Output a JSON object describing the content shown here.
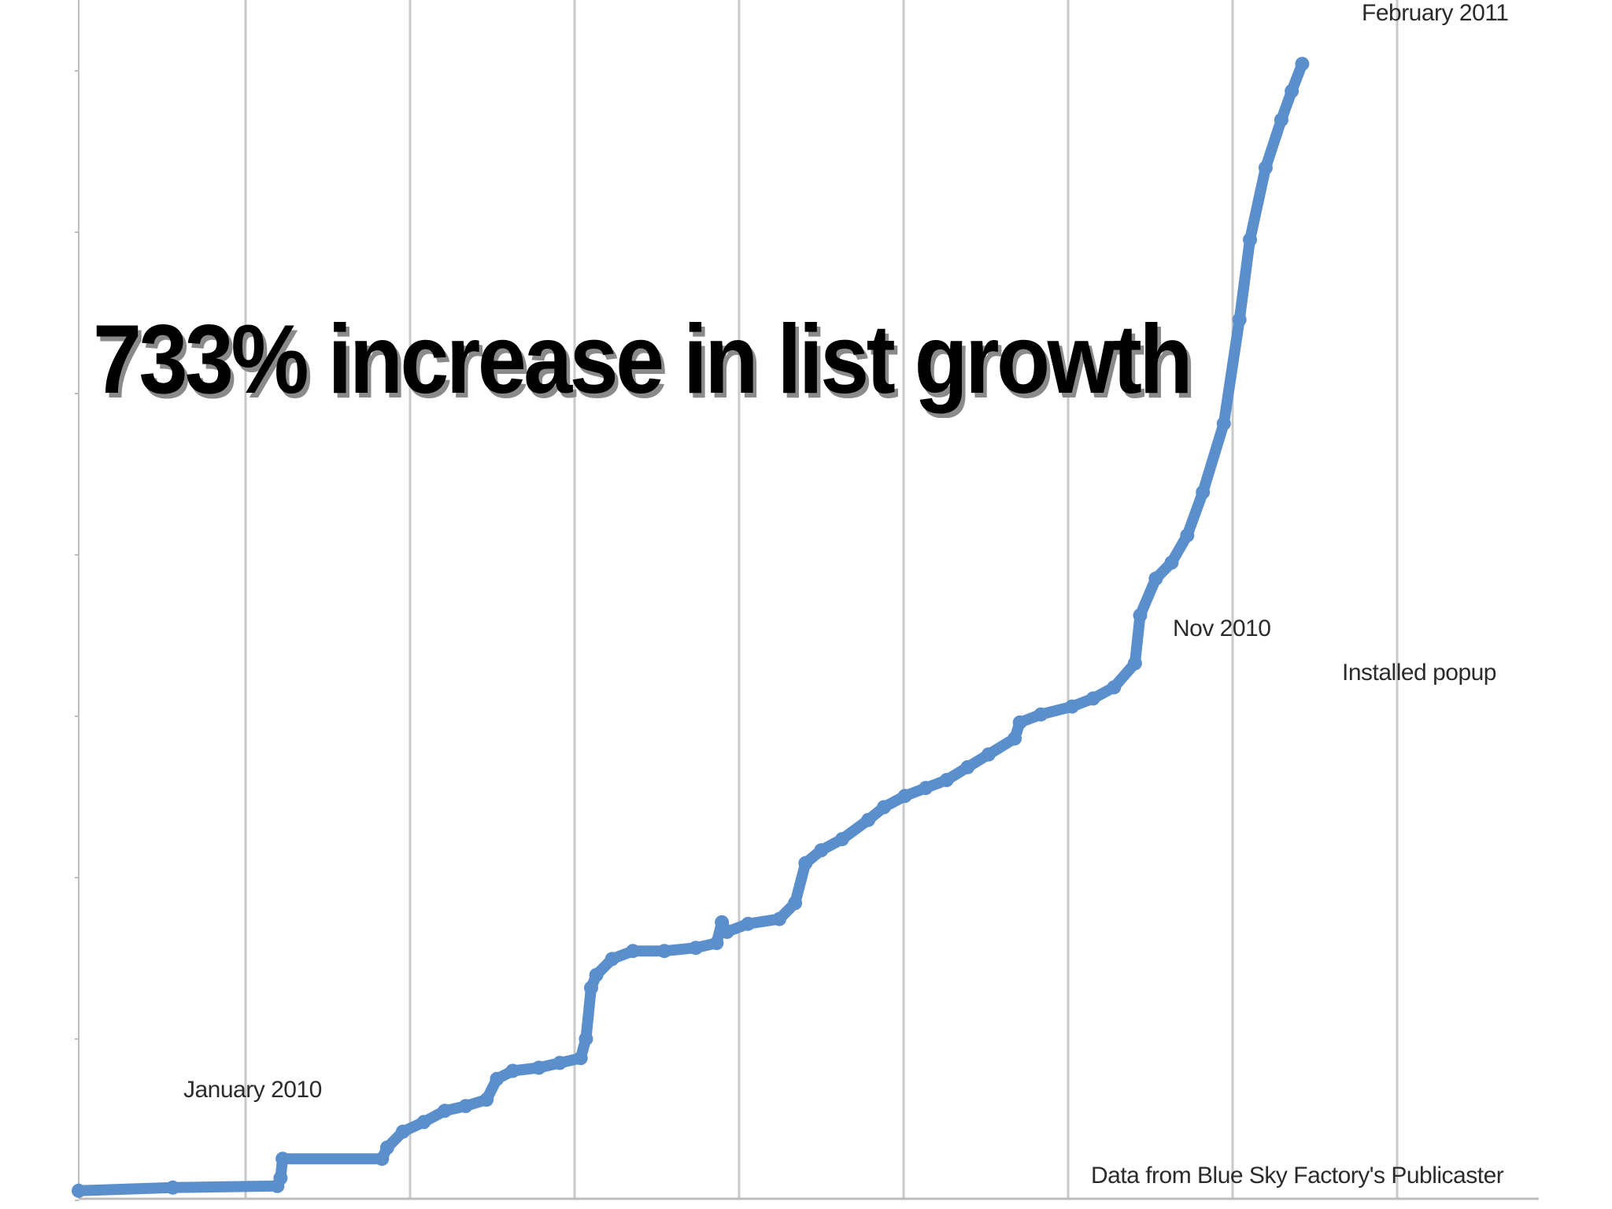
{
  "headline": "733% increase in list growth",
  "chart_data": {
    "type": "line",
    "title": "",
    "xlabel": "",
    "ylabel": "",
    "x_tick_labels": [],
    "y_tick_labels": [],
    "grid": "vertical",
    "annotations": [
      {
        "text": "January 2010",
        "at_month": 0
      },
      {
        "text": "Nov 2010",
        "at_month": 10
      },
      {
        "text": "Installed popup",
        "at_month": 10.5
      },
      {
        "text": "February 2011",
        "at_month": 13
      },
      {
        "text": "Data from Blue Sky Factory's Publicaster",
        "at_month": 13
      }
    ],
    "x_unit": "months since January 2010",
    "xlim": [
      0,
      14
    ],
    "ylim": [
      0,
      7.5
    ],
    "series": [
      {
        "color": "#5b8fcc",
        "points": [
          [
            0.0,
            0.05
          ],
          [
            0.9,
            0.07
          ],
          [
            1.9,
            0.08
          ],
          [
            1.93,
            0.13
          ],
          [
            1.95,
            0.25
          ],
          [
            2.9,
            0.25
          ],
          [
            2.95,
            0.32
          ],
          [
            3.1,
            0.42
          ],
          [
            3.3,
            0.48
          ],
          [
            3.5,
            0.55
          ],
          [
            3.7,
            0.58
          ],
          [
            3.9,
            0.62
          ],
          [
            4.0,
            0.75
          ],
          [
            4.15,
            0.8
          ],
          [
            4.4,
            0.82
          ],
          [
            4.6,
            0.85
          ],
          [
            4.8,
            0.88
          ],
          [
            4.85,
            1.0
          ],
          [
            4.9,
            1.32
          ],
          [
            4.95,
            1.4
          ],
          [
            5.1,
            1.5
          ],
          [
            5.3,
            1.55
          ],
          [
            5.6,
            1.55
          ],
          [
            5.9,
            1.57
          ],
          [
            6.1,
            1.6
          ],
          [
            6.15,
            1.73
          ],
          [
            6.2,
            1.67
          ],
          [
            6.4,
            1.72
          ],
          [
            6.7,
            1.75
          ],
          [
            6.85,
            1.85
          ],
          [
            6.95,
            2.1
          ],
          [
            7.1,
            2.18
          ],
          [
            7.3,
            2.25
          ],
          [
            7.55,
            2.37
          ],
          [
            7.7,
            2.45
          ],
          [
            7.9,
            2.52
          ],
          [
            8.1,
            2.57
          ],
          [
            8.3,
            2.62
          ],
          [
            8.5,
            2.7
          ],
          [
            8.7,
            2.78
          ],
          [
            8.95,
            2.88
          ],
          [
            9.0,
            2.98
          ],
          [
            9.2,
            3.03
          ],
          [
            9.5,
            3.08
          ],
          [
            9.7,
            3.13
          ],
          [
            9.9,
            3.2
          ],
          [
            10.1,
            3.35
          ],
          [
            10.15,
            3.65
          ],
          [
            10.3,
            3.88
          ],
          [
            10.45,
            3.98
          ],
          [
            10.6,
            4.15
          ],
          [
            10.75,
            4.42
          ],
          [
            10.95,
            4.85
          ],
          [
            11.1,
            5.5
          ],
          [
            11.2,
            6.0
          ],
          [
            11.35,
            6.45
          ],
          [
            11.5,
            6.75
          ],
          [
            11.6,
            6.93
          ],
          [
            11.7,
            7.1
          ]
        ]
      }
    ]
  }
}
